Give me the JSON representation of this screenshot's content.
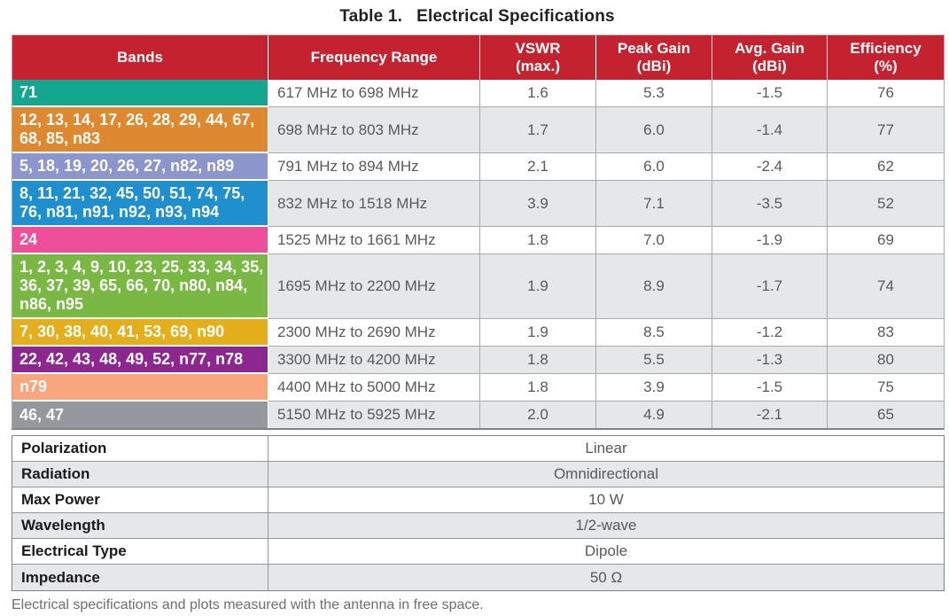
{
  "title": {
    "prefix": "Table 1.",
    "text": "Electrical Specifications"
  },
  "colors": {
    "header_red": "#C4222E",
    "row_alt_gray": "#E6E7E8",
    "grid_gray": "#A7A9AC",
    "body_text": "#58595B"
  },
  "spec_table": {
    "headers": [
      {
        "line1": "Bands",
        "line2": ""
      },
      {
        "line1": "Frequency Range",
        "line2": ""
      },
      {
        "line1": "VSWR",
        "line2": "(max.)"
      },
      {
        "line1": "Peak Gain",
        "line2": "(dBi)"
      },
      {
        "line1": "Avg. Gain",
        "line2": "(dBi)"
      },
      {
        "line1": "Efficiency",
        "line2": "(%)"
      }
    ],
    "rows": [
      {
        "bands": "71",
        "color": "#13A78F",
        "freq": "617 MHz to 698 MHz",
        "vswr": "1.6",
        "peak_gain": "5.3",
        "avg_gain": "-1.5",
        "efficiency": "76"
      },
      {
        "bands": "12, 13, 14, 17, 26, 28, 29, 44, 67, 68, 85, n83",
        "color": "#DE8830",
        "freq": "698 MHz to 803 MHz",
        "vswr": "1.7",
        "peak_gain": "6.0",
        "avg_gain": "-1.4",
        "efficiency": "77"
      },
      {
        "bands": "5, 18, 19, 20, 26, 27, n82, n89",
        "color": "#8D96CC",
        "freq": "791 MHz to 894 MHz",
        "vswr": "2.1",
        "peak_gain": "6.0",
        "avg_gain": "-2.4",
        "efficiency": "62"
      },
      {
        "bands": "8, 11, 21, 32, 45, 50, 51, 74, 75, 76, n81, n91, n92, n93, n94",
        "color": "#1F8FCE",
        "freq": "832 MHz to 1518 MHz",
        "vswr": "3.9",
        "peak_gain": "7.1",
        "avg_gain": "-3.5",
        "efficiency": "52"
      },
      {
        "bands": "24",
        "color": "#EF4E9B",
        "freq": "1525 MHz to 1661 MHz",
        "vswr": "1.8",
        "peak_gain": "7.0",
        "avg_gain": "-1.9",
        "efficiency": "69"
      },
      {
        "bands": "1, 2, 3, 4, 9, 10, 23, 25, 33, 34, 35, 36, 37, 39, 65, 66, 70, n80, n84, n86, n95",
        "color": "#78B843",
        "freq": "1695 MHz to 2200 MHz",
        "vswr": "1.9",
        "peak_gain": "8.9",
        "avg_gain": "-1.7",
        "efficiency": "74"
      },
      {
        "bands": "7, 30, 38, 40, 41, 53, 69, n90",
        "color": "#E5AF1C",
        "freq": "2300 MHz to 2690 MHz",
        "vswr": "1.9",
        "peak_gain": "8.5",
        "avg_gain": "-1.2",
        "efficiency": "83"
      },
      {
        "bands": "22, 42, 43, 48, 49, 52, n77, n78",
        "color": "#8D2790",
        "freq": "3300 MHz to 4200 MHz",
        "vswr": "1.8",
        "peak_gain": "5.5",
        "avg_gain": "-1.3",
        "efficiency": "80"
      },
      {
        "bands": "n79",
        "color": "#F9A57D",
        "freq": "4400 MHz to 5000 MHz",
        "vswr": "1.8",
        "peak_gain": "3.9",
        "avg_gain": "-1.5",
        "efficiency": "75"
      },
      {
        "bands": "46, 47",
        "color": "#95999E",
        "freq": "5150 MHz to 5925 MHz",
        "vswr": "2.0",
        "peak_gain": "4.9",
        "avg_gain": "-2.1",
        "efficiency": "65"
      }
    ]
  },
  "properties_table": {
    "rows": [
      {
        "label": "Polarization",
        "value": "Linear"
      },
      {
        "label": "Radiation",
        "value": "Omnidirectional"
      },
      {
        "label": "Max Power",
        "value": "10 W"
      },
      {
        "label": "Wavelength",
        "value": "1/2-wave"
      },
      {
        "label": "Electrical Type",
        "value": "Dipole"
      },
      {
        "label": "Impedance",
        "value": "50 Ω"
      }
    ]
  },
  "footnote": "Electrical specifications and plots measured with the antenna in free space."
}
